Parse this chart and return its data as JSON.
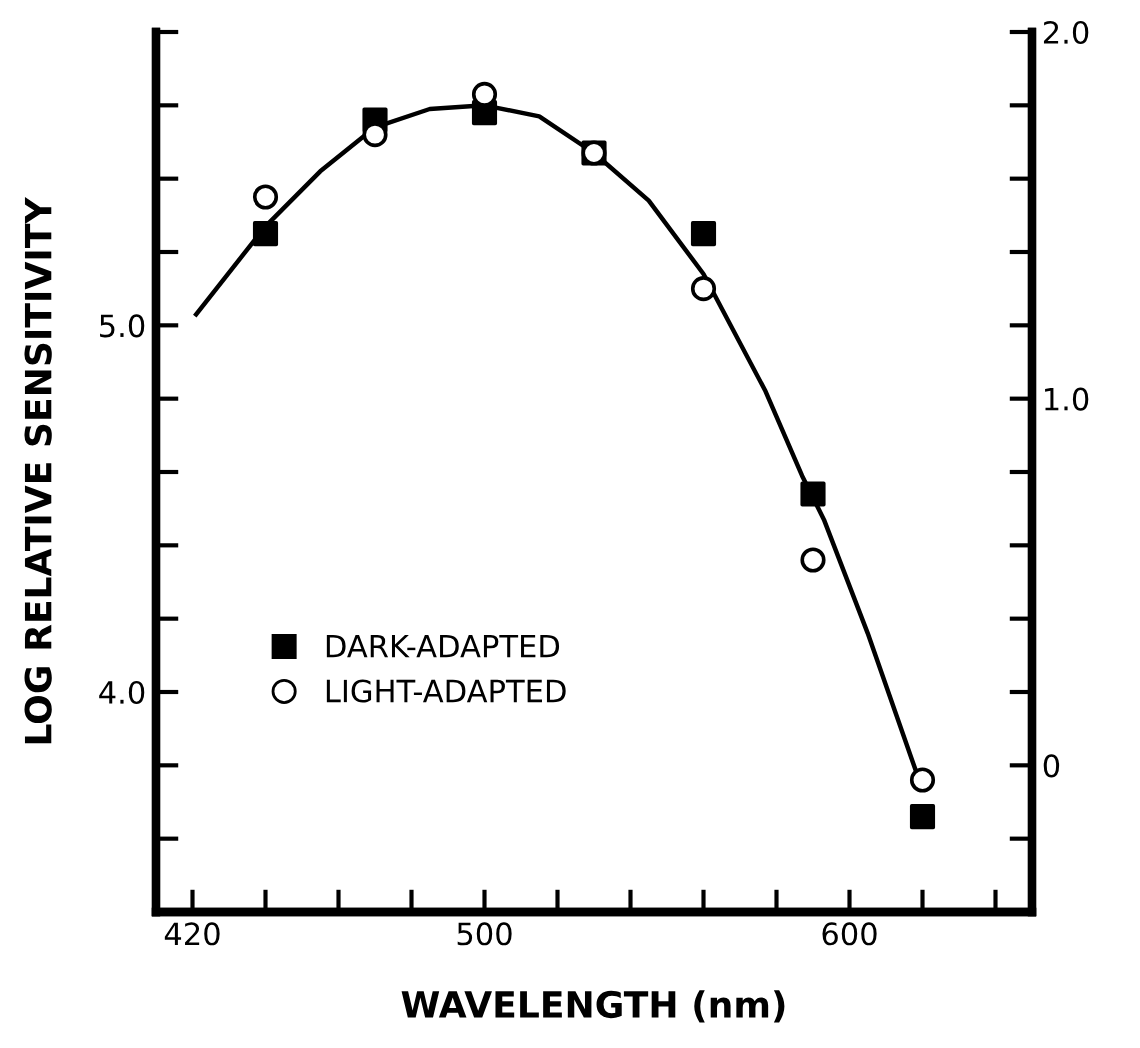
{
  "chart_data": {
    "type": "scatter",
    "xlabel": "WAVELENGTH (nm)",
    "ylabel": "LOG RELATIVE SENSITIVITY",
    "xlim": [
      410,
      650
    ],
    "xticks": [
      420,
      {
        "value": 440,
        "label": null
      },
      {
        "value": 460,
        "label": null
      },
      {
        "value": 480,
        "label": null
      },
      500,
      {
        "value": 520,
        "label": null
      },
      {
        "value": 540,
        "label": null
      },
      {
        "value": 560,
        "label": null
      },
      {
        "value": 580,
        "label": null
      },
      600,
      {
        "value": 620,
        "label": null
      },
      {
        "value": 640,
        "label": null
      }
    ],
    "ylim": [
      3.4,
      5.8
    ],
    "yticks": [
      {
        "value": 3.6,
        "label": null
      },
      {
        "value": 3.8,
        "label": null
      },
      {
        "value": 4.0,
        "label": "4.0"
      },
      {
        "value": 4.2,
        "label": null
      },
      {
        "value": 4.4,
        "label": null
      },
      {
        "value": 4.6,
        "label": null
      },
      {
        "value": 4.8,
        "label": null
      },
      {
        "value": 5.0,
        "label": "5.0"
      },
      {
        "value": 5.2,
        "label": null
      },
      {
        "value": 5.4,
        "label": null
      },
      {
        "value": 5.6,
        "label": null
      },
      {
        "value": 5.8,
        "label": null
      }
    ],
    "y2lim": [
      -0.4,
      2.0
    ],
    "y2ticks": [
      {
        "value": -0.2,
        "label": null
      },
      0,
      {
        "value": 0.2,
        "label": null
      },
      {
        "value": 0.4,
        "label": null
      },
      {
        "value": 0.6,
        "label": null
      },
      {
        "value": 0.8,
        "label": null
      },
      {
        "value": 1.0,
        "label": "1.0"
      },
      {
        "value": 1.2,
        "label": null
      },
      {
        "value": 1.4,
        "label": null
      },
      {
        "value": 1.6,
        "label": null
      },
      {
        "value": 1.8,
        "label": null
      },
      {
        "value": 2.0,
        "label": "2.0"
      }
    ],
    "legend": "left",
    "grid": false,
    "series": [
      {
        "name": "DARK-ADAPTED",
        "marker": "square",
        "color": "#000000",
        "x": [
          440,
          470,
          500,
          530,
          560,
          590,
          620
        ],
        "values": [
          5.25,
          5.56,
          5.58,
          5.47,
          5.25,
          4.54,
          3.66
        ]
      },
      {
        "name": "LIGHT-ADAPTED",
        "marker": "circle",
        "color": "#000000",
        "x": [
          440,
          470,
          500,
          530,
          560,
          590,
          620
        ],
        "values": [
          5.35,
          5.52,
          5.63,
          5.47,
          5.1,
          4.36,
          3.76
        ]
      },
      {
        "type": "line",
        "marker": "none",
        "color": "#000000",
        "x": [
          421,
          440,
          455,
          470,
          485,
          500,
          515,
          530,
          545,
          560,
          577,
          587,
          593,
          605,
          618
        ],
        "values": [
          5.03,
          5.27,
          5.42,
          5.54,
          5.59,
          5.6,
          5.57,
          5.47,
          5.34,
          5.14,
          4.82,
          4.59,
          4.47,
          4.16,
          3.79
        ]
      }
    ]
  }
}
